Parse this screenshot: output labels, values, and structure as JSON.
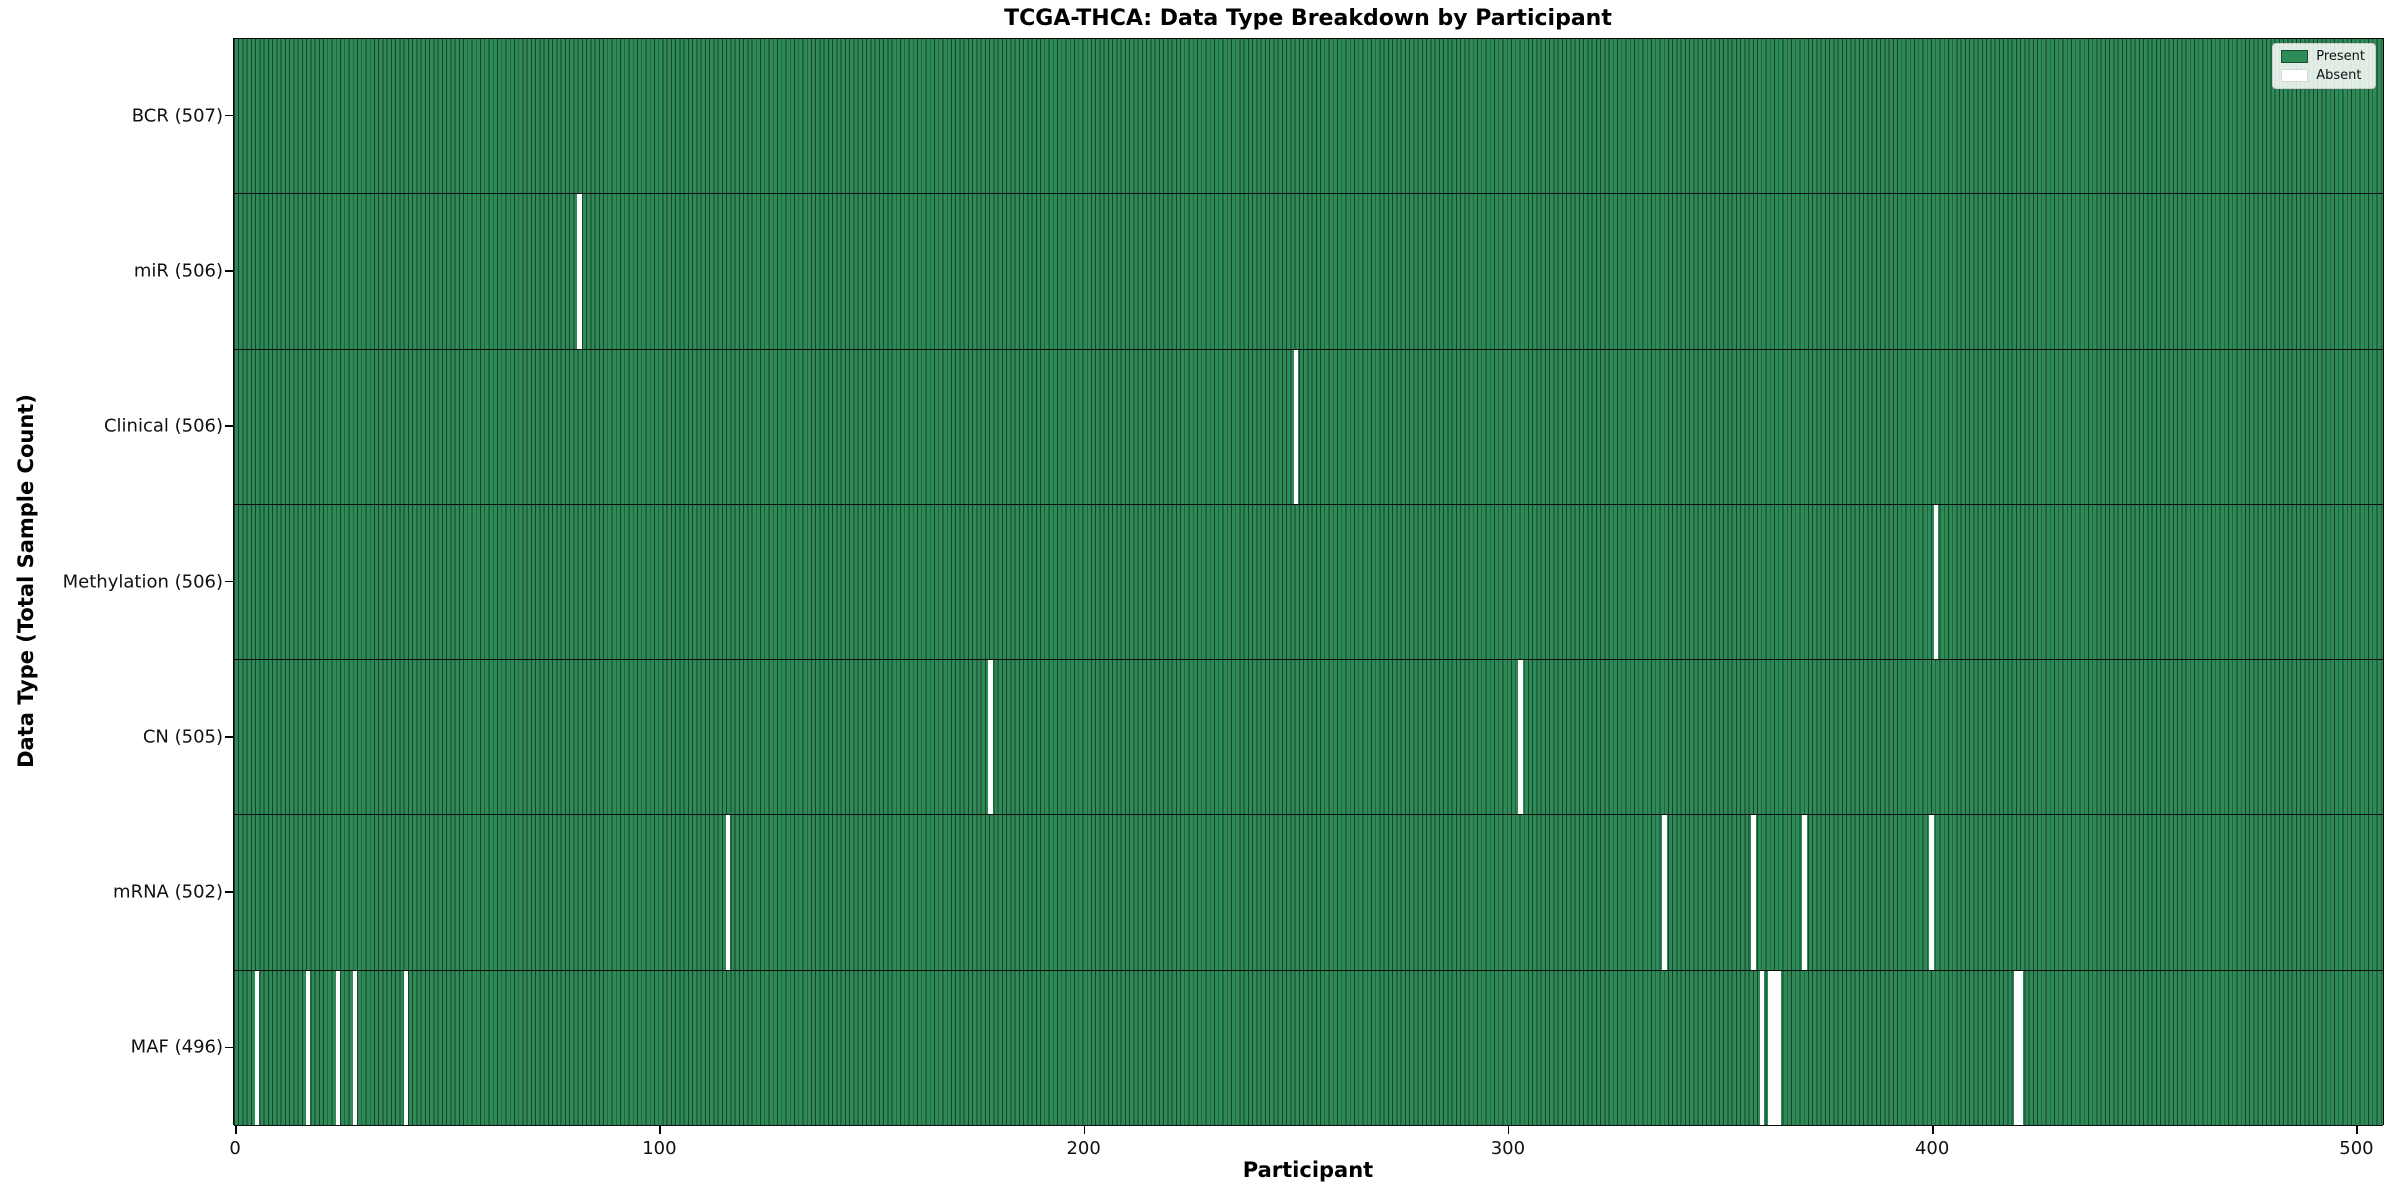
{
  "title": "TCGA-THCA: Data Type Breakdown by Participant",
  "axes": {
    "xlabel": "Participant",
    "ylabel": "Data Type (Total Sample Count)"
  },
  "legend": {
    "items": [
      {
        "label": "Present",
        "color": "#2e8b57",
        "border": "#1b4c31"
      },
      {
        "label": "Absent",
        "color": "#ffffff",
        "border": "#d8d8d8"
      }
    ]
  },
  "colors": {
    "present_fill": "#2e8b57",
    "cell_edge": "#173f29",
    "absent_fill": "#ffffff",
    "row_separator": "#0d0d0d",
    "spine": "#000000"
  },
  "chart_data": {
    "type": "heatmap",
    "title": "TCGA-THCA: Data Type Breakdown by Participant",
    "xlabel": "Participant",
    "ylabel": "Data Type (Total Sample Count)",
    "legend": [
      "Present",
      "Absent"
    ],
    "legend_position": "upper right",
    "n_participants": 507,
    "x_ticks": [
      0,
      100,
      200,
      300,
      400,
      500
    ],
    "x_range": [
      0,
      507
    ],
    "rows": [
      {
        "label": "BCR (507)",
        "data_type": "BCR",
        "total": 507,
        "absent_participants": []
      },
      {
        "label": "miR (506)",
        "data_type": "miR",
        "total": 506,
        "absent_participants": [
          81
        ]
      },
      {
        "label": "Clinical (506)",
        "data_type": "Clinical",
        "total": 506,
        "absent_participants": [
          250
        ]
      },
      {
        "label": "Methylation (506)",
        "data_type": "Methylation",
        "total": 506,
        "absent_participants": [
          401
        ]
      },
      {
        "label": "CN (505)",
        "data_type": "CN",
        "total": 505,
        "absent_participants": [
          178,
          303
        ]
      },
      {
        "label": "mRNA (502)",
        "data_type": "mRNA",
        "total": 502,
        "absent_participants": [
          116,
          337,
          358,
          370,
          400
        ]
      },
      {
        "label": "MAF (496)",
        "data_type": "MAF",
        "total": 496,
        "absent_participants": [
          5,
          17,
          24,
          28,
          40,
          360,
          362,
          363,
          364,
          420,
          421
        ]
      }
    ]
  }
}
